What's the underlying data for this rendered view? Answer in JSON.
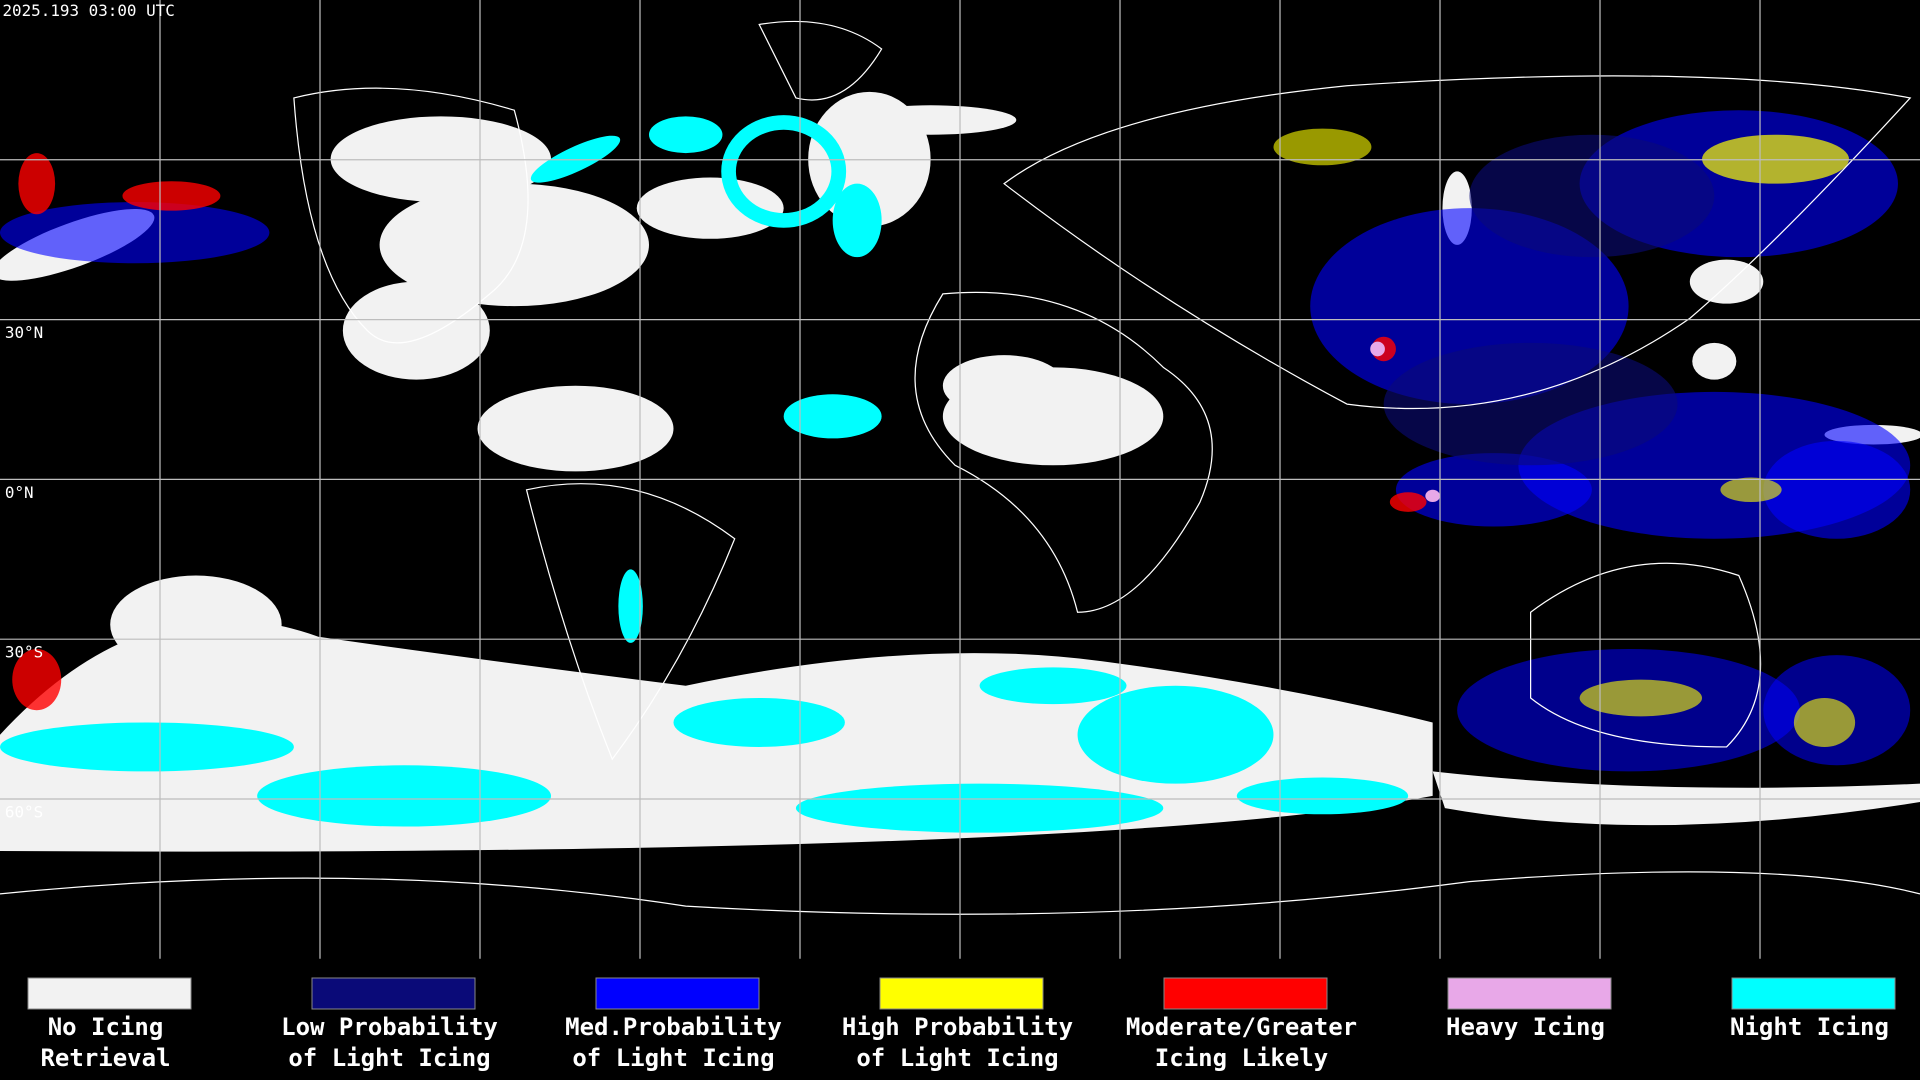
{
  "timestamp": "2025.193 03:00 UTC",
  "latitude_labels": [
    "30°N",
    "0°N",
    "30°S",
    "60°S"
  ],
  "legend": [
    {
      "color": "#f2f2f2",
      "lines": [
        "No Icing",
        "Retrieval"
      ]
    },
    {
      "color": "#0a0a78",
      "lines": [
        "Low Probability",
        "of Light Icing"
      ]
    },
    {
      "color": "#0000ff",
      "lines": [
        "Med.Probability",
        "of Light Icing"
      ]
    },
    {
      "color": "#ffff00",
      "lines": [
        "High Probability",
        "of Light Icing"
      ]
    },
    {
      "color": "#ff0000",
      "lines": [
        "Moderate/Greater",
        "Icing Likely"
      ]
    },
    {
      "color": "#e8a8e8",
      "lines": [
        "Heavy Icing"
      ]
    },
    {
      "color": "#00ffff",
      "lines": [
        "Night Icing"
      ]
    }
  ]
}
